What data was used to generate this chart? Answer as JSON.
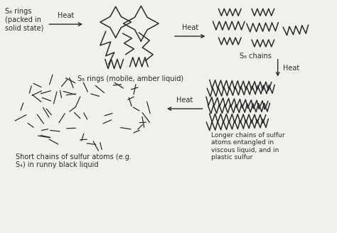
{
  "bg_color": "#f2f0ec",
  "line_color": "#2a2a2a",
  "text_color": "#2a2a2a",
  "font_size": 7.0,
  "labels": {
    "start": "S₈ rings\n(packed in\nsolid state)",
    "mid_top": "S₈ rings (mobile, amber liquid)",
    "right_top": "S₈ chains",
    "bottom_left": "Short chains of sulfur atoms (e.g.\nS₄) in runny black liquid",
    "bottom_right": "Longer chains of sulfur\natoms entangled in\nviscous liquid, and in\nplastic sulfur"
  }
}
